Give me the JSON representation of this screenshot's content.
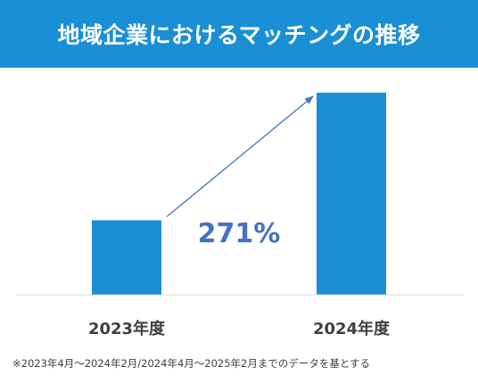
{
  "header": {
    "title": "地域企業におけるマッチングの推移"
  },
  "chart_data": {
    "type": "bar",
    "categories": [
      "2023年度",
      "2024年度"
    ],
    "values": [
      27,
      73.2
    ],
    "ylim": [
      0,
      80
    ],
    "grid": false,
    "annotation": "271%",
    "bar_color": "#1a8fd6",
    "annotation_color": "#4472c4",
    "arrow_color": "#4472c4"
  },
  "footnote": "※2023年4月～2024年2月/2024年4月～2025年2月までのデータを基とする"
}
